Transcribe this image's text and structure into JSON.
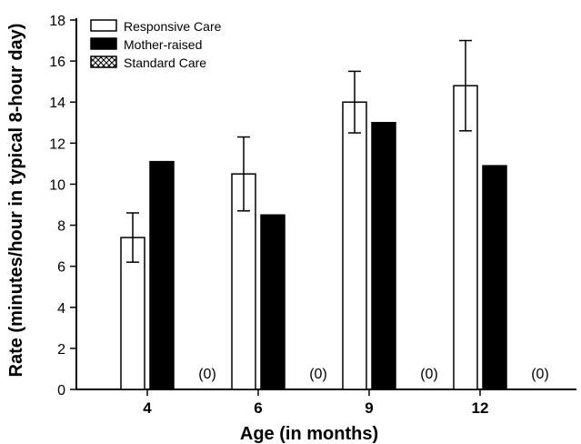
{
  "chart_data": {
    "type": "bar",
    "xlabel": "Age (in months)",
    "ylabel": "Rate (minutes/hour in typical 8-hour day)",
    "categories": [
      "4",
      "6",
      "9",
      "12"
    ],
    "ylim": [
      0,
      18
    ],
    "yticks": [
      0,
      2,
      4,
      6,
      8,
      10,
      12,
      14,
      16,
      18
    ],
    "legend_position": "top-left",
    "grid": false,
    "series": [
      {
        "name": "Responsive Care",
        "fill": "#ffffff",
        "values": [
          7.4,
          10.5,
          14.0,
          14.8
        ],
        "error_low": [
          6.2,
          8.7,
          12.5,
          12.6
        ],
        "error_high": [
          8.6,
          12.3,
          15.5,
          17.0
        ]
      },
      {
        "name": "Mother-raised",
        "fill": "#000000",
        "values": [
          11.1,
          8.5,
          13.0,
          10.9
        ]
      },
      {
        "name": "Standard Care",
        "fill": "crosshatch",
        "values": [
          0,
          0,
          0,
          0
        ],
        "value_labels": [
          "(0)",
          "(0)",
          "(0)",
          "(0)"
        ]
      }
    ]
  }
}
